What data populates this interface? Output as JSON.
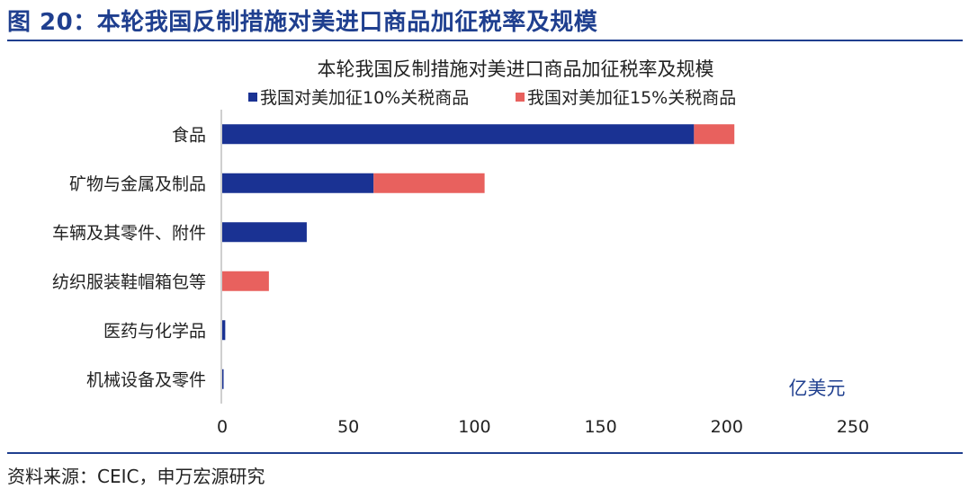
{
  "figure": {
    "heading": "图 20：本轮我国反制措施对美进口商品加征税率及规模",
    "source": "资料来源：CEIC，申万宏源研究"
  },
  "colors": {
    "series_10pct": "#1a3293",
    "series_15pct": "#e8615e",
    "heading": "#1f3f8f",
    "axis": "#bfbfbf"
  },
  "chart_data": {
    "type": "bar",
    "orientation": "horizontal",
    "stacked": true,
    "title": "本轮我国反制措施对美进口商品加征税率及规模",
    "unit": "亿美元",
    "categories": [
      "食品",
      "矿物与金属及制品",
      "车辆及其零件、附件",
      "纺织服装鞋帽箱包等",
      "医药与化学品",
      "机械设备及零件"
    ],
    "series": [
      {
        "name": "我国对美加征10%关税商品",
        "values": [
          187,
          60,
          33.5,
          0,
          1.2,
          0.4
        ]
      },
      {
        "name": "我国对美加征15%关税商品",
        "values": [
          16,
          44,
          0,
          18.5,
          0,
          0
        ]
      }
    ],
    "xlim": [
      0,
      250
    ],
    "xticks": [
      0,
      50,
      100,
      150,
      200,
      250
    ],
    "legend_position": "top",
    "grid": false
  }
}
